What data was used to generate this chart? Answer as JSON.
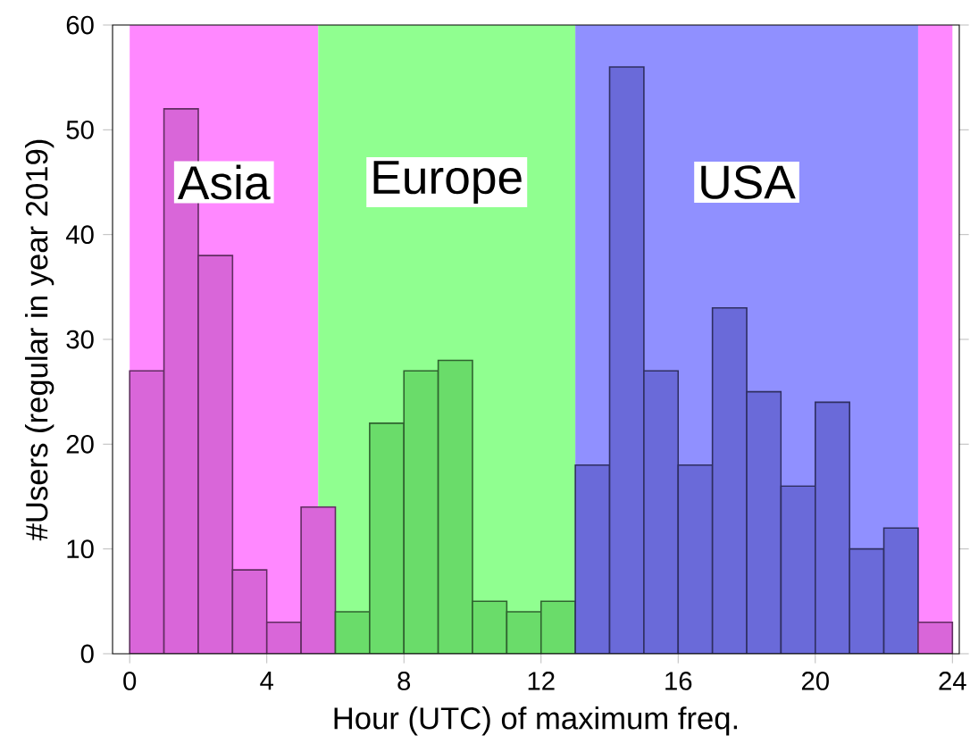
{
  "chart_data": {
    "type": "histogram",
    "xlabel": "Hour (UTC) of maximum freq.",
    "ylabel": "#Users (regular in year 2019)",
    "bins": [
      0,
      1,
      2,
      3,
      4,
      5,
      6,
      7,
      8,
      9,
      10,
      11,
      12,
      13,
      14,
      15,
      16,
      17,
      18,
      19,
      20,
      21,
      22,
      23,
      24
    ],
    "values": [
      27,
      52,
      38,
      8,
      3,
      14,
      4,
      22,
      27,
      28,
      5,
      4,
      5,
      18,
      56,
      27,
      18,
      33,
      25,
      16,
      24,
      10,
      12,
      3
    ],
    "colors": [
      "#d966d9",
      "#d966d9",
      "#d966d9",
      "#d966d9",
      "#d966d9",
      "#d966d9",
      "#6adc6a",
      "#6adc6a",
      "#6adc6a",
      "#6adc6a",
      "#6adc6a",
      "#6adc6a",
      "#6adc6a",
      "#6a6ad9",
      "#6a6ad9",
      "#6a6ad9",
      "#6a6ad9",
      "#6a6ad9",
      "#6a6ad9",
      "#6a6ad9",
      "#6a6ad9",
      "#6a6ad9",
      "#6a6ad9",
      "#d966d9"
    ],
    "bands": [
      {
        "axis": "x",
        "from": 0,
        "to": 5.5,
        "label": "Asia",
        "color": "#ff88ff"
      },
      {
        "axis": "x",
        "from": 5.5,
        "to": 13,
        "label": "Europe",
        "color": "#90ff90"
      },
      {
        "axis": "x",
        "from": 13,
        "to": 23,
        "label": "USA",
        "color": "#9090ff"
      },
      {
        "axis": "x",
        "from": 23,
        "to": 24,
        "color": "#ff88ff"
      }
    ],
    "xlim": [
      -0.5,
      24.2
    ],
    "ylim": [
      0,
      60
    ],
    "xticks": [
      0,
      4,
      8,
      12,
      16,
      20,
      24
    ],
    "yticks": [
      0,
      10,
      20,
      30,
      40,
      50,
      60
    ],
    "grid": false
  }
}
